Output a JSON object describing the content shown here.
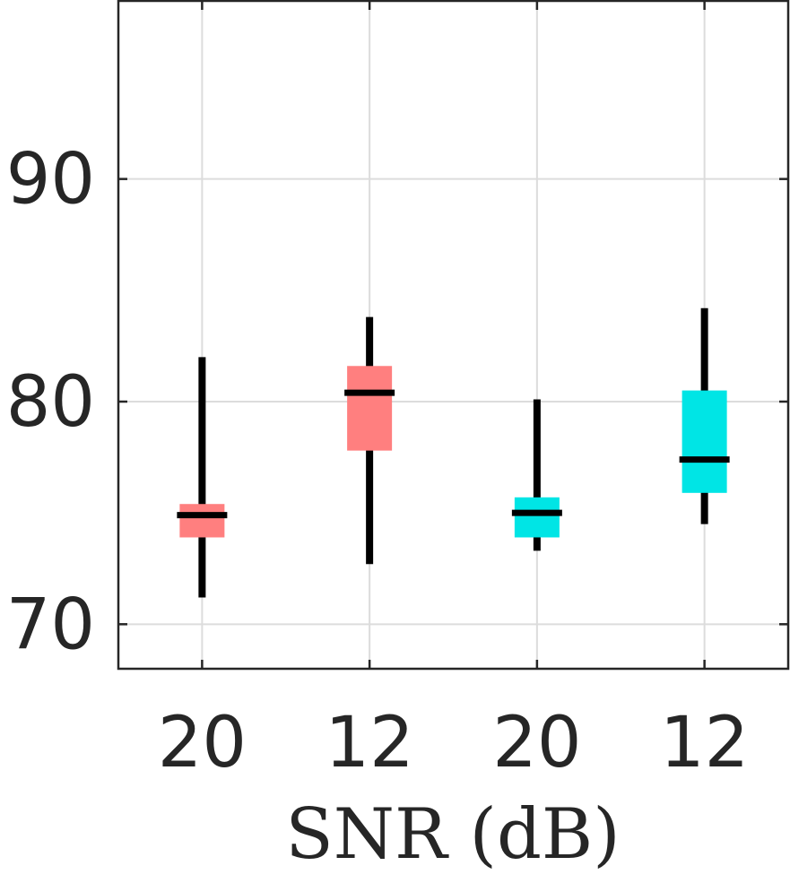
{
  "chart_data": {
    "type": "box",
    "xlabel": "SNR (dB)",
    "ylabel": "",
    "title": "",
    "ylim": [
      68,
      98
    ],
    "yticks": [
      70,
      80,
      90
    ],
    "categories": [
      "20",
      "12",
      "20",
      "12"
    ],
    "grid": true,
    "boxes": [
      {
        "label": "20",
        "color": "#FF7F7F",
        "whisker_low": 71.2,
        "q1": 73.9,
        "median": 74.9,
        "q3": 75.4,
        "whisker_high": 82.0
      },
      {
        "label": "12",
        "color": "#FF7F7F",
        "whisker_low": 72.7,
        "q1": 77.8,
        "median": 80.4,
        "q3": 81.6,
        "whisker_high": 83.8
      },
      {
        "label": "20",
        "color": "#00E5E5",
        "whisker_low": 73.3,
        "q1": 73.9,
        "median": 75.0,
        "q3": 75.7,
        "whisker_high": 80.1
      },
      {
        "label": "12",
        "color": "#00E5E5",
        "whisker_low": 74.5,
        "q1": 75.9,
        "median": 77.4,
        "q3": 80.5,
        "whisker_high": 84.2
      }
    ]
  }
}
